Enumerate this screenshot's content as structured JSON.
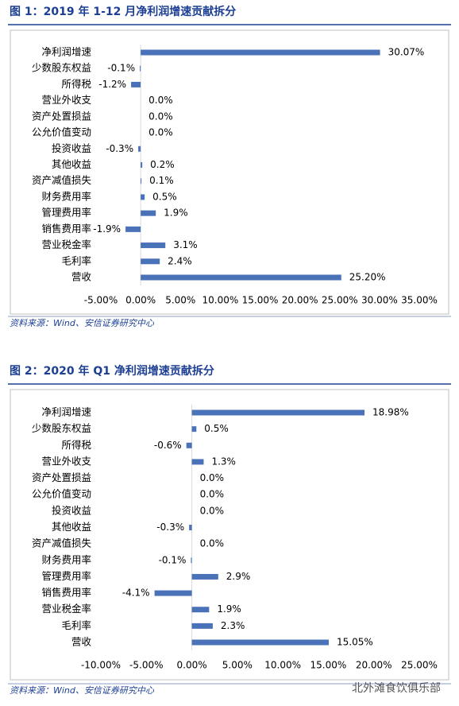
{
  "chart_data": [
    {
      "type": "barh",
      "title": "图 1：2019 年 1-12 月净利润增速贡献拆分",
      "categories": [
        "净利润增速",
        "少数股东权益",
        "所得税",
        "营业外收支",
        "资产处置损益",
        "公允价值变动",
        "投资收益",
        "其他收益",
        "资产减值损失",
        "财务费用率",
        "管理费用率",
        "销售费用率",
        "营业税金率",
        "毛利率",
        "营收"
      ],
      "values": [
        30.07,
        -0.1,
        -1.2,
        0.0,
        0.0,
        0.0,
        -0.3,
        0.2,
        0.1,
        0.5,
        1.9,
        -1.9,
        3.1,
        2.4,
        25.2
      ],
      "value_labels": [
        "30.07%",
        "-0.1%",
        "-1.2%",
        "0.0%",
        "0.0%",
        "0.0%",
        "-0.3%",
        "0.2%",
        "0.1%",
        "0.5%",
        "1.9%",
        "-1.9%",
        "3.1%",
        "2.4%",
        "25.20%"
      ],
      "color": "#4a72b8",
      "xlim": [
        -5,
        35
      ],
      "xticks": [
        {
          "value": -5,
          "label": "-5.00%"
        },
        {
          "value": 0,
          "label": "0.00%"
        },
        {
          "value": 5,
          "label": "5.00%"
        },
        {
          "value": 10,
          "label": "10.00%"
        },
        {
          "value": 15,
          "label": "15.00%"
        },
        {
          "value": 20,
          "label": "20.00%"
        },
        {
          "value": 25,
          "label": "25.00%"
        },
        {
          "value": 30,
          "label": "30.00%"
        },
        {
          "value": 35,
          "label": "35.00%"
        }
      ],
      "source": "资料来源：Wind、安信证券研究中心"
    },
    {
      "type": "barh",
      "title": "图 2：2020 年 Q1 净利润增速贡献拆分",
      "categories": [
        "净利润增速",
        "少数股东权益",
        "所得税",
        "营业外收支",
        "资产处置损益",
        "公允价值变动",
        "投资收益",
        "其他收益",
        "资产减值损失",
        "财务费用率",
        "管理费用率",
        "销售费用率",
        "营业税金率",
        "毛利率",
        "营收"
      ],
      "values": [
        18.98,
        0.5,
        -0.6,
        1.3,
        0.0,
        0.0,
        0.0,
        -0.3,
        0.0,
        -0.1,
        2.9,
        -4.1,
        1.9,
        2.3,
        15.05
      ],
      "value_labels": [
        "18.98%",
        "0.5%",
        "-0.6%",
        "1.3%",
        "0.0%",
        "0.0%",
        "0.0%",
        "-0.3%",
        "0.0%",
        "-0.1%",
        "2.9%",
        "-4.1%",
        "1.9%",
        "2.3%",
        "15.05%"
      ],
      "color": "#4a72b8",
      "xlim": [
        -10,
        25
      ],
      "xticks": [
        {
          "value": -10,
          "label": "-10.00%"
        },
        {
          "value": -5,
          "label": "-5.00%"
        },
        {
          "value": 0,
          "label": "0.00%"
        },
        {
          "value": 5,
          "label": "5.00%"
        },
        {
          "value": 10,
          "label": "10.00%"
        },
        {
          "value": 15,
          "label": "15.00%"
        },
        {
          "value": 20,
          "label": "20.00%"
        },
        {
          "value": 25,
          "label": "25.00%"
        }
      ],
      "source": "资料来源：Wind、安信证券研究中心"
    }
  ],
  "watermark": "北外滩食饮俱乐部"
}
